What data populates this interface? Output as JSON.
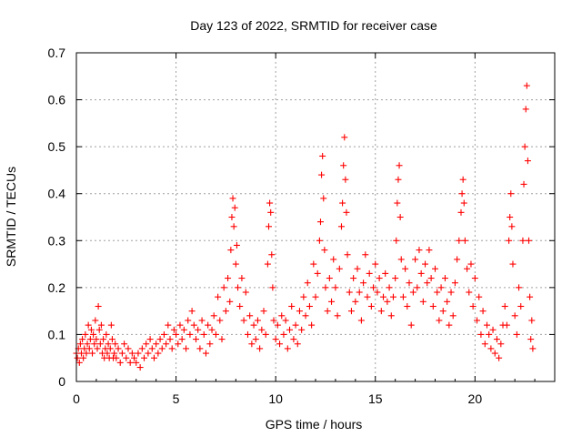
{
  "chart_data": {
    "type": "scatter",
    "title": "Day 123 of 2022, SRMTID for receiver case",
    "xlabel": "GPS time / hours",
    "ylabel": "SRMTID / TECUs",
    "xlim": [
      0,
      24
    ],
    "ylim": [
      0,
      0.7
    ],
    "xticks": [
      0,
      5,
      10,
      15,
      20
    ],
    "xtick_labels": [
      "0",
      "5",
      "10",
      "15",
      "20"
    ],
    "yticks": [
      0,
      0.1,
      0.2,
      0.3,
      0.4,
      0.5,
      0.6,
      0.7
    ],
    "ytick_labels": [
      "0",
      "0.1",
      "0.2",
      "0.3",
      "0.4",
      "0.5",
      "0.6",
      "0.7"
    ],
    "grid": true,
    "marker": "+",
    "series": [
      {
        "name": "SRMTID",
        "color": "#ff0000",
        "points": [
          [
            0.0,
            0.06
          ],
          [
            0.05,
            0.05
          ],
          [
            0.1,
            0.07
          ],
          [
            0.15,
            0.04
          ],
          [
            0.2,
            0.08
          ],
          [
            0.25,
            0.06
          ],
          [
            0.3,
            0.09
          ],
          [
            0.35,
            0.05
          ],
          [
            0.4,
            0.07
          ],
          [
            0.45,
            0.1
          ],
          [
            0.5,
            0.06
          ],
          [
            0.55,
            0.08
          ],
          [
            0.6,
            0.12
          ],
          [
            0.65,
            0.07
          ],
          [
            0.7,
            0.09
          ],
          [
            0.75,
            0.11
          ],
          [
            0.8,
            0.06
          ],
          [
            0.85,
            0.1
          ],
          [
            0.9,
            0.08
          ],
          [
            0.95,
            0.13
          ],
          [
            1.0,
            0.09
          ],
          [
            1.05,
            0.07
          ],
          [
            1.1,
            0.16
          ],
          [
            1.15,
            0.11
          ],
          [
            1.2,
            0.08
          ],
          [
            1.25,
            0.12
          ],
          [
            1.3,
            0.06
          ],
          [
            1.35,
            0.09
          ],
          [
            1.4,
            0.05
          ],
          [
            1.45,
            0.07
          ],
          [
            1.5,
            0.1
          ],
          [
            1.55,
            0.06
          ],
          [
            1.6,
            0.08
          ],
          [
            1.65,
            0.05
          ],
          [
            1.7,
            0.07
          ],
          [
            1.75,
            0.12
          ],
          [
            1.8,
            0.09
          ],
          [
            1.85,
            0.05
          ],
          [
            1.9,
            0.06
          ],
          [
            1.95,
            0.08
          ],
          [
            2.0,
            0.05
          ],
          [
            2.1,
            0.07
          ],
          [
            2.2,
            0.04
          ],
          [
            2.3,
            0.06
          ],
          [
            2.4,
            0.08
          ],
          [
            2.5,
            0.05
          ],
          [
            2.6,
            0.07
          ],
          [
            2.7,
            0.04
          ],
          [
            2.8,
            0.06
          ],
          [
            2.9,
            0.05
          ],
          [
            3.0,
            0.04
          ],
          [
            3.1,
            0.06
          ],
          [
            3.2,
            0.03
          ],
          [
            3.3,
            0.07
          ],
          [
            3.4,
            0.05
          ],
          [
            3.5,
            0.08
          ],
          [
            3.6,
            0.06
          ],
          [
            3.7,
            0.09
          ],
          [
            3.8,
            0.07
          ],
          [
            3.9,
            0.05
          ],
          [
            4.0,
            0.08
          ],
          [
            4.1,
            0.06
          ],
          [
            4.2,
            0.09
          ],
          [
            4.3,
            0.07
          ],
          [
            4.4,
            0.1
          ],
          [
            4.5,
            0.08
          ],
          [
            4.6,
            0.12
          ],
          [
            4.7,
            0.09
          ],
          [
            4.8,
            0.07
          ],
          [
            4.9,
            0.11
          ],
          [
            5.0,
            0.1
          ],
          [
            5.1,
            0.08
          ],
          [
            5.2,
            0.12
          ],
          [
            5.3,
            0.09
          ],
          [
            5.4,
            0.11
          ],
          [
            5.5,
            0.07
          ],
          [
            5.6,
            0.13
          ],
          [
            5.7,
            0.1
          ],
          [
            5.8,
            0.15
          ],
          [
            5.9,
            0.12
          ],
          [
            6.0,
            0.09
          ],
          [
            6.1,
            0.11
          ],
          [
            6.2,
            0.07
          ],
          [
            6.3,
            0.13
          ],
          [
            6.4,
            0.1
          ],
          [
            6.5,
            0.06
          ],
          [
            6.6,
            0.12
          ],
          [
            6.7,
            0.08
          ],
          [
            6.8,
            0.11
          ],
          [
            6.9,
            0.14
          ],
          [
            7.0,
            0.1
          ],
          [
            7.1,
            0.18
          ],
          [
            7.2,
            0.13
          ],
          [
            7.3,
            0.09
          ],
          [
            7.4,
            0.2
          ],
          [
            7.5,
            0.15
          ],
          [
            7.6,
            0.22
          ],
          [
            7.7,
            0.17
          ],
          [
            7.75,
            0.28
          ],
          [
            7.8,
            0.35
          ],
          [
            7.85,
            0.39
          ],
          [
            7.9,
            0.33
          ],
          [
            7.95,
            0.37
          ],
          [
            8.0,
            0.25
          ],
          [
            8.05,
            0.29
          ],
          [
            8.1,
            0.2
          ],
          [
            8.2,
            0.16
          ],
          [
            8.3,
            0.22
          ],
          [
            8.4,
            0.13
          ],
          [
            8.5,
            0.19
          ],
          [
            8.6,
            0.1
          ],
          [
            8.7,
            0.14
          ],
          [
            8.8,
            0.08
          ],
          [
            8.9,
            0.12
          ],
          [
            9.0,
            0.09
          ],
          [
            9.1,
            0.13
          ],
          [
            9.2,
            0.07
          ],
          [
            9.3,
            0.11
          ],
          [
            9.4,
            0.15
          ],
          [
            9.5,
            0.1
          ],
          [
            9.6,
            0.25
          ],
          [
            9.65,
            0.33
          ],
          [
            9.7,
            0.38
          ],
          [
            9.75,
            0.36
          ],
          [
            9.8,
            0.27
          ],
          [
            9.85,
            0.2
          ],
          [
            9.9,
            0.13
          ],
          [
            10.0,
            0.09
          ],
          [
            10.1,
            0.12
          ],
          [
            10.2,
            0.08
          ],
          [
            10.3,
            0.14
          ],
          [
            10.4,
            0.1
          ],
          [
            10.5,
            0.13
          ],
          [
            10.6,
            0.07
          ],
          [
            10.7,
            0.11
          ],
          [
            10.8,
            0.16
          ],
          [
            10.9,
            0.09
          ],
          [
            11.0,
            0.12
          ],
          [
            11.1,
            0.08
          ],
          [
            11.2,
            0.15
          ],
          [
            11.3,
            0.11
          ],
          [
            11.4,
            0.18
          ],
          [
            11.5,
            0.14
          ],
          [
            11.6,
            0.21
          ],
          [
            11.7,
            0.16
          ],
          [
            11.8,
            0.12
          ],
          [
            11.9,
            0.25
          ],
          [
            12.0,
            0.18
          ],
          [
            12.1,
            0.23
          ],
          [
            12.2,
            0.3
          ],
          [
            12.25,
            0.34
          ],
          [
            12.3,
            0.44
          ],
          [
            12.35,
            0.48
          ],
          [
            12.4,
            0.39
          ],
          [
            12.45,
            0.28
          ],
          [
            12.5,
            0.2
          ],
          [
            12.6,
            0.15
          ],
          [
            12.7,
            0.22
          ],
          [
            12.8,
            0.17
          ],
          [
            12.9,
            0.26
          ],
          [
            13.0,
            0.2
          ],
          [
            13.1,
            0.14
          ],
          [
            13.2,
            0.24
          ],
          [
            13.3,
            0.33
          ],
          [
            13.35,
            0.38
          ],
          [
            13.4,
            0.46
          ],
          [
            13.45,
            0.52
          ],
          [
            13.5,
            0.43
          ],
          [
            13.55,
            0.36
          ],
          [
            13.6,
            0.27
          ],
          [
            13.7,
            0.19
          ],
          [
            13.8,
            0.15
          ],
          [
            13.9,
            0.22
          ],
          [
            14.0,
            0.17
          ],
          [
            14.1,
            0.24
          ],
          [
            14.2,
            0.19
          ],
          [
            14.3,
            0.13
          ],
          [
            14.4,
            0.21
          ],
          [
            14.5,
            0.27
          ],
          [
            14.6,
            0.18
          ],
          [
            14.7,
            0.23
          ],
          [
            14.8,
            0.16
          ],
          [
            14.9,
            0.2
          ],
          [
            15.0,
            0.25
          ],
          [
            15.1,
            0.19
          ],
          [
            15.2,
            0.22
          ],
          [
            15.3,
            0.15
          ],
          [
            15.4,
            0.18
          ],
          [
            15.5,
            0.23
          ],
          [
            15.6,
            0.17
          ],
          [
            15.7,
            0.2
          ],
          [
            15.8,
            0.14
          ],
          [
            15.9,
            0.18
          ],
          [
            16.0,
            0.22
          ],
          [
            16.05,
            0.3
          ],
          [
            16.1,
            0.38
          ],
          [
            16.15,
            0.43
          ],
          [
            16.2,
            0.46
          ],
          [
            16.25,
            0.35
          ],
          [
            16.3,
            0.26
          ],
          [
            16.4,
            0.18
          ],
          [
            16.5,
            0.24
          ],
          [
            16.6,
            0.16
          ],
          [
            16.7,
            0.21
          ],
          [
            16.8,
            0.12
          ],
          [
            16.9,
            0.19
          ],
          [
            17.0,
            0.26
          ],
          [
            17.1,
            0.2
          ],
          [
            17.2,
            0.28
          ],
          [
            17.3,
            0.23
          ],
          [
            17.4,
            0.17
          ],
          [
            17.5,
            0.25
          ],
          [
            17.6,
            0.21
          ],
          [
            17.7,
            0.28
          ],
          [
            17.8,
            0.22
          ],
          [
            17.9,
            0.16
          ],
          [
            18.0,
            0.24
          ],
          [
            18.1,
            0.19
          ],
          [
            18.2,
            0.13
          ],
          [
            18.3,
            0.2
          ],
          [
            18.4,
            0.15
          ],
          [
            18.5,
            0.22
          ],
          [
            18.6,
            0.17
          ],
          [
            18.7,
            0.12
          ],
          [
            18.8,
            0.19
          ],
          [
            18.9,
            0.14
          ],
          [
            19.0,
            0.21
          ],
          [
            19.1,
            0.26
          ],
          [
            19.2,
            0.3
          ],
          [
            19.3,
            0.36
          ],
          [
            19.35,
            0.4
          ],
          [
            19.4,
            0.43
          ],
          [
            19.45,
            0.38
          ],
          [
            19.5,
            0.3
          ],
          [
            19.6,
            0.24
          ],
          [
            19.7,
            0.19
          ],
          [
            19.8,
            0.25
          ],
          [
            19.9,
            0.16
          ],
          [
            20.0,
            0.22
          ],
          [
            20.1,
            0.13
          ],
          [
            20.2,
            0.18
          ],
          [
            20.3,
            0.1
          ],
          [
            20.4,
            0.15
          ],
          [
            20.5,
            0.08
          ],
          [
            20.6,
            0.12
          ],
          [
            20.7,
            0.1
          ],
          [
            20.8,
            0.07
          ],
          [
            20.9,
            0.11
          ],
          [
            21.0,
            0.06
          ],
          [
            21.1,
            0.09
          ],
          [
            21.2,
            0.05
          ],
          [
            21.3,
            0.08
          ],
          [
            21.4,
            0.12
          ],
          [
            21.5,
            0.16
          ],
          [
            21.6,
            0.12
          ],
          [
            21.7,
            0.3
          ],
          [
            21.75,
            0.35
          ],
          [
            21.8,
            0.4
          ],
          [
            21.85,
            0.33
          ],
          [
            21.9,
            0.25
          ],
          [
            22.0,
            0.14
          ],
          [
            22.1,
            0.1
          ],
          [
            22.2,
            0.2
          ],
          [
            22.3,
            0.16
          ],
          [
            22.4,
            0.3
          ],
          [
            22.45,
            0.42
          ],
          [
            22.5,
            0.5
          ],
          [
            22.55,
            0.58
          ],
          [
            22.6,
            0.63
          ],
          [
            22.65,
            0.47
          ],
          [
            22.7,
            0.3
          ],
          [
            22.75,
            0.18
          ],
          [
            22.8,
            0.09
          ],
          [
            22.85,
            0.13
          ],
          [
            22.9,
            0.07
          ]
        ]
      }
    ]
  }
}
